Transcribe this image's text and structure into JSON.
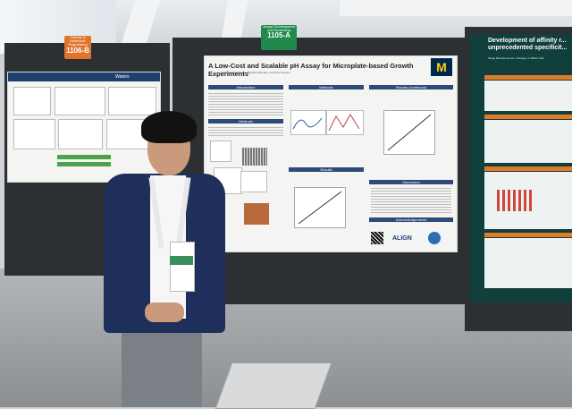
{
  "signs": {
    "left": {
      "small": "Cellular & Molecular Engineering",
      "number": "1106-B"
    },
    "center": {
      "small": "Assay Development and Screening",
      "number": "1105-A"
    }
  },
  "main_poster": {
    "title": "A Low-Cost and Scalable pH Assay for Microplate-based Growth Experiments",
    "authors": "Octavian Stanbaugh¹, Benjamin Bredel¹, and Paul Jensen²",
    "sections": {
      "introduction": "Introduction",
      "methods": "Methods",
      "results": "Results",
      "results_continued": "Results (continued)",
      "discussion": "Discussion",
      "acknowledgements": "Acknowledgements"
    },
    "footer_logo": "ALIGN"
  },
  "right_poster": {
    "title": "Development of affinity r... unprecedented specificit...",
    "company": "Tango Biosciences Inc. Chicago, IL 60612 USA"
  },
  "left_poster": {
    "logo_text": "Waters"
  },
  "colors": {
    "sign_orange": "#e0742c",
    "sign_green": "#1f8a4c",
    "jacket": "#1d2f5a",
    "umich_blue": "#00274c",
    "umich_maize": "#ffcb05"
  }
}
